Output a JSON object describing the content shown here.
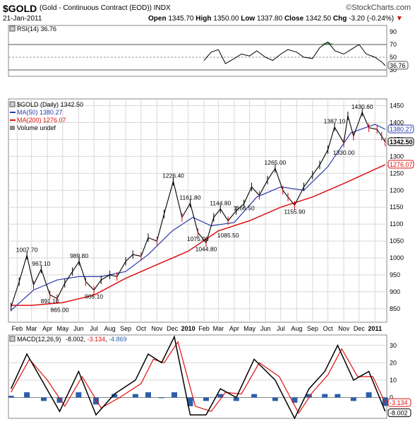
{
  "header": {
    "symbol": "$GOLD",
    "description": "(Gold - Continuous Contract (EOD)) INDX",
    "brand": "©StockCharts.com",
    "date": "21-Jan-2011",
    "open_label": "Open",
    "open": "1345.70",
    "high_label": "High",
    "high": "1350.00",
    "low_label": "Low",
    "low": "1337.80",
    "close_label": "Close",
    "close": "1342.50",
    "chg_label": "Chg",
    "chg": "-3.20 (-0.24%)",
    "chg_arrow": "▼"
  },
  "colors": {
    "price": "#000000",
    "ma50": "#2b3aa8",
    "ma200": "#e01010",
    "rsi": "#000000",
    "rsi_fill": "#3a8a3a",
    "macd": "#000000",
    "signal": "#e01010",
    "histogram": "#2a5faa",
    "grid": "#d8d8d8"
  },
  "chart_data": [
    {
      "type": "line",
      "panel": "rsi",
      "legend": "RSI(14) 36.76",
      "last_value_label": "36.76",
      "ylim": [
        20,
        100
      ],
      "y_ticks": [
        30,
        50,
        70,
        90
      ],
      "reference_lines": [
        30,
        50,
        70
      ],
      "x_dates": [
        "2010-02-01",
        "2010-02-15",
        "2010-03-01",
        "2010-03-15",
        "2010-04-01",
        "2010-04-15",
        "2010-05-01",
        "2010-05-15",
        "2010-06-01",
        "2010-06-15",
        "2010-07-01",
        "2010-07-15",
        "2010-08-01",
        "2010-08-15",
        "2010-09-01",
        "2010-09-15",
        "2010-10-01",
        "2010-10-15",
        "2010-11-01",
        "2010-11-15",
        "2010-12-01",
        "2010-12-15",
        "2011-01-01",
        "2011-01-15",
        "2011-01-21"
      ],
      "values": [
        45,
        58,
        62,
        40,
        48,
        55,
        52,
        60,
        50,
        45,
        55,
        62,
        58,
        50,
        48,
        65,
        74,
        60,
        55,
        62,
        70,
        55,
        50,
        42,
        36.76
      ]
    },
    {
      "type": "line",
      "panel": "price",
      "legend": {
        "price": "$GOLD (Daily) 1342.50",
        "ma50": "MA(50) 1380.27",
        "ma200": "MA(200) 1276.07",
        "volume": "Volume undef"
      },
      "ylim": [
        810,
        1470
      ],
      "y_ticks": [
        850,
        900,
        950,
        1000,
        1050,
        1100,
        1150,
        1200,
        1250,
        1300,
        1350,
        1400,
        1450
      ],
      "last_labels": {
        "ma50": "1380.27",
        "close": "1342.50",
        "ma200": "1276.07"
      },
      "x_tick_labels": [
        "Feb",
        "Mar",
        "Apr",
        "May",
        "Jun",
        "Jul",
        "Aug",
        "Sep",
        "Oct",
        "Nov",
        "Dec",
        "2010",
        "Feb",
        "Mar",
        "Apr",
        "May",
        "Jun",
        "Jul",
        "Aug",
        "Sep",
        "Oct",
        "Nov",
        "Dec",
        "2011"
      ],
      "x_tick_bold": [
        "2010",
        "2011"
      ],
      "series": [
        {
          "name": "$GOLD",
          "x": [
            "2009-01-20",
            "2009-02-05",
            "2009-02-20",
            "2009-03-05",
            "2009-03-20",
            "2009-04-06",
            "2009-04-20",
            "2009-05-05",
            "2009-05-20",
            "2009-06-02",
            "2009-06-15",
            "2009-07-01",
            "2009-07-15",
            "2009-08-01",
            "2009-08-15",
            "2009-09-01",
            "2009-09-15",
            "2009-10-01",
            "2009-10-15",
            "2009-11-01",
            "2009-11-15",
            "2009-12-03",
            "2009-12-20",
            "2010-01-05",
            "2010-01-20",
            "2010-02-05",
            "2010-02-20",
            "2010-03-05",
            "2010-03-20",
            "2010-04-05",
            "2010-04-20",
            "2010-05-05",
            "2010-05-20",
            "2010-06-05",
            "2010-06-20",
            "2010-07-05",
            "2010-07-15",
            "2010-07-28",
            "2010-08-15",
            "2010-09-01",
            "2010-09-15",
            "2010-10-01",
            "2010-10-14",
            "2010-11-01",
            "2010-11-09",
            "2010-11-20",
            "2010-12-07",
            "2010-12-20",
            "2011-01-05",
            "2011-01-14",
            "2011-01-21"
          ],
          "values": [
            855,
            930,
            1007.7,
            920,
            967.1,
            891.1,
            880,
            925,
            960,
            989.8,
            930,
            905.1,
            935,
            950,
            945,
            990,
            1010,
            1005,
            1060,
            1050,
            1130,
            1226.4,
            1120,
            1161.8,
            1075,
            1044.8,
            1120,
            1144.8,
            1110,
            1140,
            1160,
            1210,
            1185,
            1230,
            1265,
            1200,
            1180,
            1155.9,
            1210,
            1245,
            1275,
            1320,
            1387.1,
            1340,
            1420,
            1360,
            1430.6,
            1385,
            1380,
            1360,
            1342.5
          ]
        },
        {
          "name": "MA(50)",
          "x": [
            "2009-01-20",
            "2009-03-05",
            "2009-04-20",
            "2009-06-01",
            "2009-07-15",
            "2009-09-01",
            "2009-10-15",
            "2009-12-01",
            "2010-01-10",
            "2010-02-15",
            "2010-04-01",
            "2010-05-15",
            "2010-07-01",
            "2010-08-15",
            "2010-10-01",
            "2010-11-15",
            "2011-01-01",
            "2011-01-21"
          ],
          "values": [
            845,
            905,
            935,
            945,
            945,
            960,
            1010,
            1080,
            1120,
            1095,
            1105,
            1180,
            1210,
            1200,
            1270,
            1370,
            1395,
            1380.27
          ]
        },
        {
          "name": "MA(200)",
          "x": [
            "2009-01-20",
            "2009-03-01",
            "2009-05-01",
            "2009-07-01",
            "2009-09-01",
            "2009-11-01",
            "2010-01-01",
            "2010-03-01",
            "2010-05-01",
            "2010-07-01",
            "2010-09-01",
            "2010-11-01",
            "2011-01-01",
            "2011-01-21"
          ],
          "values": [
            860,
            860,
            868,
            890,
            940,
            980,
            1020,
            1080,
            1110,
            1150,
            1180,
            1220,
            1262,
            1276.07
          ]
        }
      ],
      "annotations": [
        {
          "text": "1007.70",
          "x": "2009-02-20",
          "y": 1007.7,
          "pos": "above"
        },
        {
          "text": "967.10",
          "x": "2009-03-20",
          "y": 967.1,
          "pos": "above"
        },
        {
          "text": "891.10",
          "x": "2009-04-06",
          "y": 891.1,
          "pos": "below"
        },
        {
          "text": "865.00",
          "x": "2009-04-25",
          "y": 865,
          "pos": "below"
        },
        {
          "text": "989.80",
          "x": "2009-06-02",
          "y": 989.8,
          "pos": "above"
        },
        {
          "text": "905.10",
          "x": "2009-07-01",
          "y": 905.1,
          "pos": "below"
        },
        {
          "text": "1226.40",
          "x": "2009-12-03",
          "y": 1226.4,
          "pos": "above"
        },
        {
          "text": "1161.80",
          "x": "2010-01-05",
          "y": 1161.8,
          "pos": "above"
        },
        {
          "text": "1075.00",
          "x": "2010-01-20",
          "y": 1075,
          "pos": "below"
        },
        {
          "text": "1044.80",
          "x": "2010-02-05",
          "y": 1044.8,
          "pos": "below"
        },
        {
          "text": "1144.80",
          "x": "2010-03-05",
          "y": 1144.8,
          "pos": "above"
        },
        {
          "text": "1085.50",
          "x": "2010-03-20",
          "y": 1085.5,
          "pos": "below"
        },
        {
          "text": "1166.50",
          "x": "2010-04-20",
          "y": 1166.5,
          "pos": "below"
        },
        {
          "text": "1265.00",
          "x": "2010-06-20",
          "y": 1265,
          "pos": "above"
        },
        {
          "text": "1155.90",
          "x": "2010-07-28",
          "y": 1155.9,
          "pos": "below"
        },
        {
          "text": "1387.10",
          "x": "2010-10-14",
          "y": 1387.1,
          "pos": "above"
        },
        {
          "text": "1330.00",
          "x": "2010-11-01",
          "y": 1330,
          "pos": "below"
        },
        {
          "text": "1430.60",
          "x": "2010-12-07",
          "y": 1430.6,
          "pos": "above"
        }
      ]
    },
    {
      "type": "line",
      "panel": "macd",
      "legend": {
        "macd": "MACD(12,26,9)",
        "macd_value": "-8.002",
        "signal_value": "-3.134",
        "hist_value": "-4.869"
      },
      "last_labels": {
        "signal": "-3.134",
        "macd": "-8.002"
      },
      "ylim": [
        -12,
        36
      ],
      "y_ticks": [
        0,
        10,
        20,
        30
      ],
      "series": [
        {
          "name": "MACD",
          "x": [
            "2009-01-20",
            "2009-02-20",
            "2009-03-25",
            "2009-04-25",
            "2009-06-01",
            "2009-07-05",
            "2009-08-10",
            "2009-09-20",
            "2009-10-15",
            "2009-11-10",
            "2009-12-05",
            "2010-01-05",
            "2010-02-05",
            "2010-03-05",
            "2010-04-05",
            "2010-05-10",
            "2010-06-20",
            "2010-07-28",
            "2010-08-25",
            "2010-09-25",
            "2010-10-20",
            "2010-11-20",
            "2010-12-20",
            "2011-01-21"
          ],
          "values": [
            5,
            25,
            8,
            -8,
            15,
            -10,
            2,
            10,
            25,
            20,
            35,
            -10,
            -10,
            5,
            0,
            22,
            10,
            -12,
            5,
            15,
            30,
            10,
            15,
            -8.002
          ]
        },
        {
          "name": "Signal",
          "x": [
            "2009-01-20",
            "2009-02-25",
            "2009-04-01",
            "2009-05-05",
            "2009-06-08",
            "2009-07-15",
            "2009-08-20",
            "2009-10-01",
            "2009-10-25",
            "2009-11-15",
            "2009-12-12",
            "2010-01-15",
            "2010-02-15",
            "2010-03-15",
            "2010-04-15",
            "2010-05-20",
            "2010-06-28",
            "2010-08-05",
            "2010-09-01",
            "2010-10-01",
            "2010-10-28",
            "2010-11-28",
            "2010-12-28",
            "2011-01-21"
          ],
          "values": [
            3,
            22,
            10,
            -5,
            12,
            -6,
            0,
            8,
            22,
            20,
            32,
            -5,
            -8,
            3,
            2,
            20,
            12,
            -9,
            3,
            13,
            28,
            12,
            12,
            -3.134
          ]
        },
        {
          "name": "Histogram",
          "x": [
            "2009-01-20",
            "2009-02-20",
            "2009-03-25",
            "2009-04-25",
            "2009-06-01",
            "2009-07-05",
            "2009-08-10",
            "2009-09-20",
            "2009-10-15",
            "2009-11-10",
            "2009-12-05",
            "2010-01-05",
            "2010-02-05",
            "2010-03-05",
            "2010-04-05",
            "2010-05-10",
            "2010-06-20",
            "2010-07-28",
            "2010-08-25",
            "2010-09-25",
            "2010-10-20",
            "2010-11-20",
            "2010-12-20",
            "2011-01-21"
          ],
          "values": [
            1,
            3,
            -2,
            -3,
            3,
            -4,
            2,
            2,
            3,
            0,
            3,
            -5,
            -2,
            2,
            -2,
            2,
            -2,
            -3,
            2,
            2,
            2,
            -2,
            3,
            -4.869
          ]
        }
      ]
    }
  ]
}
